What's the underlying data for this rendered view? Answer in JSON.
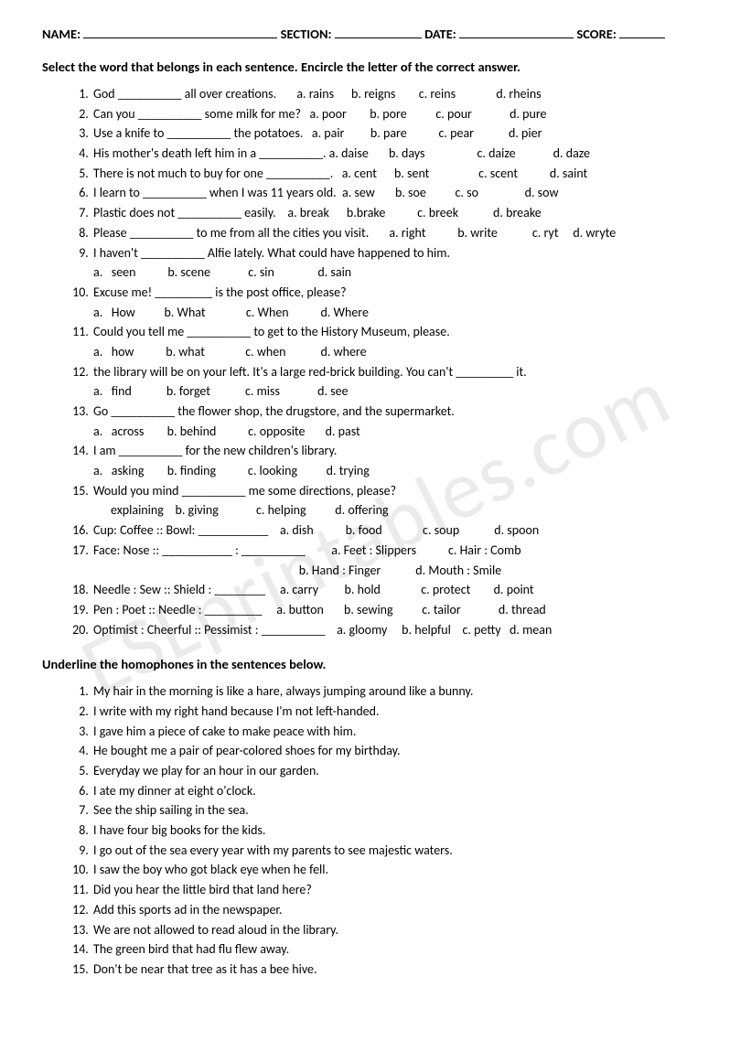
{
  "header": {
    "name_label": "NAME:",
    "section_label": "SECTION:",
    "date_label": "DATE:",
    "score_label": "SCORE:"
  },
  "section1": {
    "instruction": "Select the word that belongs in each sentence. Encircle the letter of the correct answer.",
    "items": [
      {
        "stem": "God __________ all over creations.       ",
        "opts": "a. rains      b. reigns        c. reins              d. rheins"
      },
      {
        "stem": "Can you __________ some milk for me?   ",
        "opts": "a. poor        b. pore          c. pour             d. pure"
      },
      {
        "stem": "Use a knife to __________ the potatoes.   ",
        "opts": "a. pair         b. pare           c. pear            d. pier"
      },
      {
        "stem": "His mother's death left him in a __________. ",
        "opts": "a. daise       b. days                  c. daize             d. daze"
      },
      {
        "stem": "There is not much to buy for one __________.   ",
        "opts": "a. cent      b. sent                 c. scent           d. saint"
      },
      {
        "stem": "I learn to __________ when I was 11 years old.  ",
        "opts": "a. sew       b. soe          c. so                d. sow"
      },
      {
        "stem": "Plastic does not __________ easily.    ",
        "opts": "a. break      b.brake           c. breek            d. breake"
      },
      {
        "stem": "Please __________ to me from all the cities you visit.       ",
        "opts": "a. right           b. write            c. ryt     d. wryte"
      },
      {
        "stem": "I haven't __________ Alfie lately. What could have happened to him.",
        "sub": "a.   seen           b. scene             c. sin               d. sain"
      },
      {
        "stem": "Excuse me! _________ is the post office, please?",
        "sub": "a.   How          b. What              c. When           d. Where"
      },
      {
        "stem": "Could you tell me __________ to get to the History Museum, please.",
        "sub": "a.   how           b. what              c. when            d. where"
      },
      {
        "stem": "the library will be on your left. It's a large red-brick building. You can't _________ it.",
        "sub": "a.   find            b. forget            c. miss             d. see"
      },
      {
        "stem": "Go __________ the flower shop, the drugstore, and the supermarket.",
        "sub": "a.   across        b. behind           c. opposite       d. past"
      },
      {
        "stem": "I am __________ for the new children's library.",
        "sub": "a.   asking        b. finding           c. looking          d. trying"
      },
      {
        "stem": "Would you mind __________ me some directions, please?",
        "sub": "      explaining    b. giving             c. helping          d. offering"
      },
      {
        "stem": "Cup: Coffee :: Bowl: ___________    ",
        "opts": "a. dish           b. food              c. soup            d. spoon"
      },
      {
        "stem": "Face: Nose :: ___________ : __________         ",
        "opts": "a. Feet : Slippers           c. Hair : Comb",
        "sub": "                                                                       b. Hand : Finger            d. Mouth : Smile"
      },
      {
        "stem": "Needle : Sew :: Shield : ________     ",
        "opts": "a. carry         b. hold              c. protect        d. point"
      },
      {
        "stem": "Pen : Poet :: Needle : _________     ",
        "opts": "a. button       b. sewing          c. tailor             d. thread"
      },
      {
        "stem": "Optimist : Cheerful :: Pessimist : __________    ",
        "opts": "a. gloomy     b. helpful    c. petty   d. mean"
      }
    ]
  },
  "section2": {
    "instruction": "Underline the homophones in the sentences below.",
    "items": [
      "My hair in the morning is like a hare, always jumping around like a bunny.",
      "I write with my right hand because I'm not left-handed.",
      "I gave him a piece of cake to make peace with him.",
      "He bought me a pair of pear-colored shoes for my birthday.",
      "Everyday we play for an hour in our garden.",
      "I ate my dinner at eight o'clock.",
      "See the ship sailing in the sea.",
      "I have four big books for the kids.",
      "I go out of the sea every year with my parents to see majestic waters.",
      "I saw the boy who got black eye when he fell.",
      "Did you hear the little bird that land here?",
      "Add this sports ad in the newspaper.",
      "We are not allowed to read aloud in the library.",
      "The green bird that had flu flew away.",
      "Don't be near that tree as it has a bee hive."
    ]
  }
}
